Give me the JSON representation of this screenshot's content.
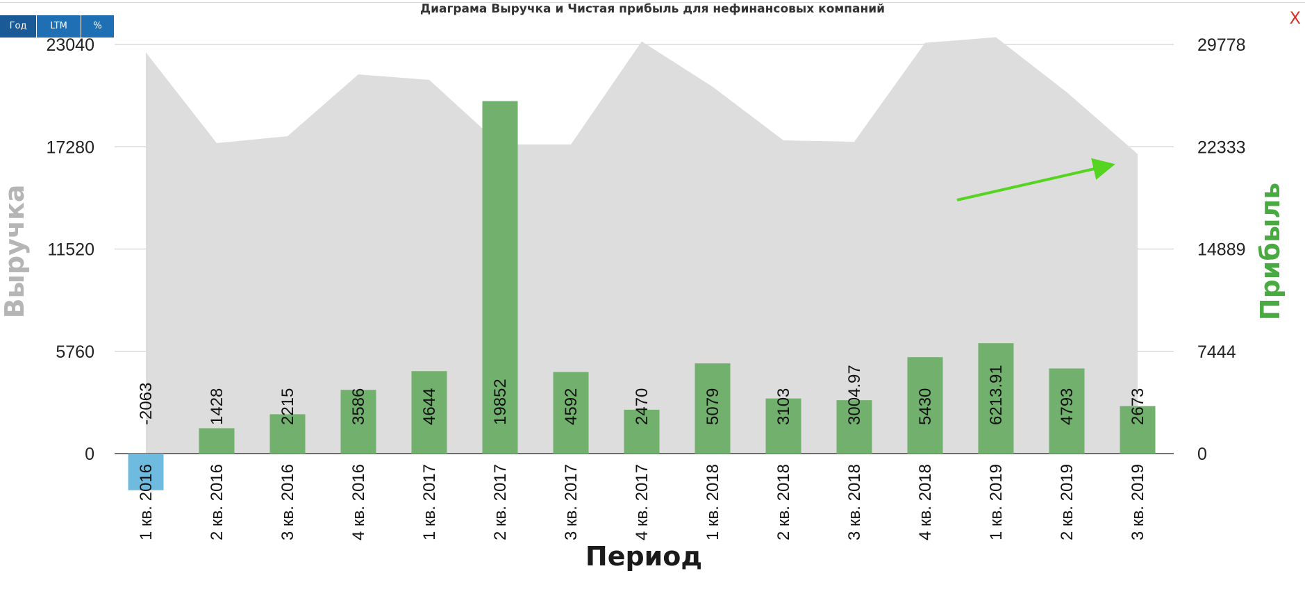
{
  "header": {
    "title": "Диаграма Выручка и Чистая прибыль для нефинансовых компаний",
    "buttons": [
      {
        "label": "Год",
        "active": true
      },
      {
        "label": "LTM",
        "active": false
      },
      {
        "label": "%",
        "active": false
      }
    ],
    "close_label": "X"
  },
  "colors": {
    "revenue_area": "#dddddd",
    "profit_bar": "#72b06d",
    "negative_bar": "#6fbbe0",
    "profit_axis_title": "#4aaa42",
    "revenue_axis_title": "#b5b5b5",
    "arrow": "#55d422",
    "gridline": "#d9d9d9"
  },
  "chart_data": {
    "type": "bar",
    "title": "Диаграма Выручка и Чистая прибыль для нефинансовых компаний",
    "xlabel": "Период",
    "ylabel_left": "Выручка",
    "ylabel_right": "Прибыль",
    "categories": [
      "1 кв. 2016",
      "2 кв. 2016",
      "3 кв. 2016",
      "4 кв. 2016",
      "1 кв. 2017",
      "2 кв. 2017",
      "3 кв. 2017",
      "4 кв. 2017",
      "1 кв. 2018",
      "2 кв. 2018",
      "3 кв. 2018",
      "4 кв. 2018",
      "1 кв. 2019",
      "2 кв. 2019",
      "3 кв. 2019"
    ],
    "left_axis": {
      "ticks": [
        0,
        5760,
        11520,
        17280,
        23040
      ],
      "range": [
        0,
        23040
      ]
    },
    "right_axis": {
      "ticks": [
        0,
        7444,
        14889,
        22333,
        29778
      ],
      "range": [
        0,
        29778
      ]
    },
    "series": [
      {
        "type": "area",
        "axis": "right",
        "values": [
          29200,
          22600,
          23100,
          27600,
          27200,
          22500,
          22500,
          30000,
          26700,
          22800,
          22700,
          29900,
          30300,
          26300,
          21800
        ]
      },
      {
        "type": "bar",
        "axis": "left",
        "values": [
          -2063,
          1428,
          2215,
          3586,
          4644,
          19852,
          4592,
          2470,
          5079,
          3103,
          3004.97,
          5430,
          6213.91,
          4793,
          2673
        ],
        "labels": [
          "-2063",
          "1428",
          "2215",
          "3586",
          "4644",
          "19852",
          "4592",
          "2470",
          "5079",
          "3103",
          "3004.97",
          "5430",
          "6213.91",
          "4793",
          "2673"
        ]
      }
    ],
    "grid": true,
    "annotation": {
      "type": "arrow",
      "color": "#55d422"
    }
  }
}
